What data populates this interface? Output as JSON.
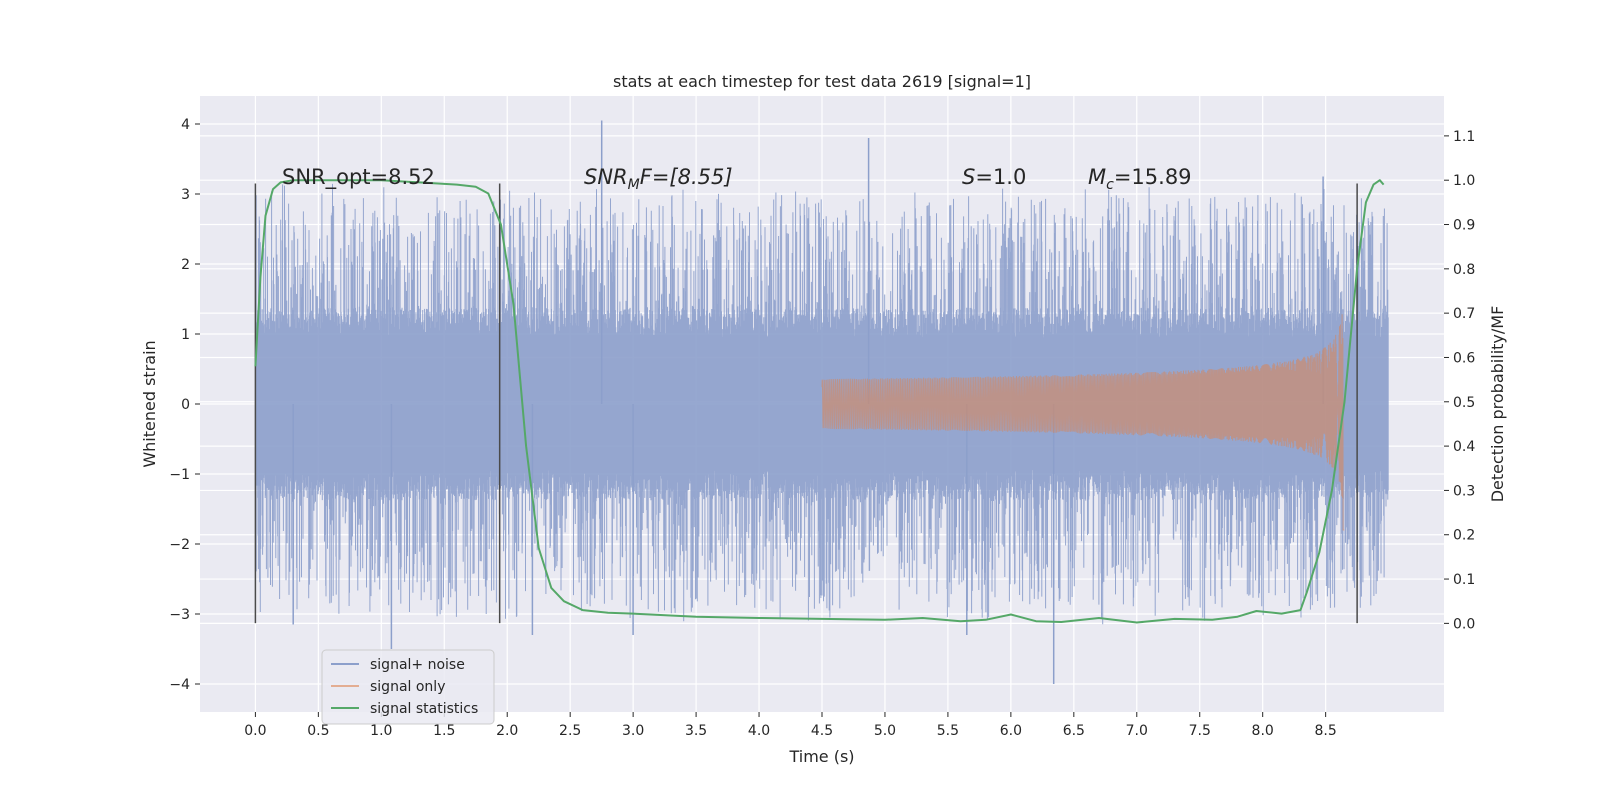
{
  "chart_data": {
    "type": "line",
    "title": "stats at each timestep for test data 2619 [signal=1]",
    "xlabel": "Time (s)",
    "ylabel": "Whitened strain",
    "y2label": "Detection probability/MF",
    "xlim": [
      -0.44,
      9.44
    ],
    "ylim": [
      -4.4,
      4.4
    ],
    "y2lim": [
      -0.2,
      1.19
    ],
    "x_ticks": [
      "0.0",
      "0.5",
      "1.0",
      "1.5",
      "2.0",
      "2.5",
      "3.0",
      "3.5",
      "4.0",
      "4.5",
      "5.0",
      "5.5",
      "6.0",
      "6.5",
      "7.0",
      "7.5",
      "8.0",
      "8.5"
    ],
    "y_ticks": [
      "4",
      "3",
      "2",
      "1",
      "0",
      "−1",
      "−2",
      "−3",
      "−4"
    ],
    "y2_ticks": [
      "1.1",
      "1.0",
      "0.9",
      "0.8",
      "0.7",
      "0.6",
      "0.5",
      "0.4",
      "0.3",
      "0.2",
      "0.1",
      "0.0"
    ],
    "grid": true,
    "vertical_markers_s": [
      0.0,
      1.94,
      8.75
    ],
    "noise": {
      "t_start": 0.0,
      "t_end": 9.0,
      "typical_abs": 1.25,
      "max": 4.05,
      "min": -4.0
    },
    "signal_only": {
      "t_start": 4.5,
      "t_merger": 8.65,
      "peak_amplitude": 1.35,
      "min_amplitude": -1.8
    },
    "series": [
      {
        "name": "signal+ noise",
        "color": "#8c9fcb"
      },
      {
        "name": "signal only",
        "color": "#dd8452"
      },
      {
        "name": "signal statistics",
        "color": "#55a868",
        "x": [
          0.0,
          0.04,
          0.08,
          0.14,
          0.2,
          0.3,
          0.5,
          0.8,
          1.0,
          1.3,
          1.6,
          1.75,
          1.85,
          1.95,
          2.05,
          2.15,
          2.25,
          2.35,
          2.45,
          2.6,
          2.8,
          3.0,
          3.5,
          4.0,
          4.5,
          5.0,
          5.3,
          5.6,
          5.8,
          6.0,
          6.2,
          6.4,
          6.7,
          7.0,
          7.3,
          7.6,
          7.8,
          7.95,
          8.15,
          8.3,
          8.35,
          8.45,
          8.55,
          8.65,
          8.75,
          8.82,
          8.88,
          8.93,
          8.96
        ],
        "values": [
          0.58,
          0.78,
          0.92,
          0.98,
          0.995,
          1.0,
          1.0,
          1.0,
          1.0,
          0.995,
          0.99,
          0.985,
          0.97,
          0.9,
          0.72,
          0.4,
          0.17,
          0.08,
          0.05,
          0.03,
          0.024,
          0.022,
          0.015,
          0.012,
          0.01,
          0.008,
          0.012,
          0.005,
          0.008,
          0.02,
          0.005,
          0.003,
          0.012,
          0.002,
          0.01,
          0.008,
          0.015,
          0.028,
          0.022,
          0.03,
          0.07,
          0.16,
          0.3,
          0.5,
          0.8,
          0.95,
          0.99,
          1.0,
          0.99
        ]
      }
    ],
    "annotations": {
      "snr_opt": "SNR_opt=8.52",
      "snr_mf_main": "SNR",
      "snr_mf_sub": "M",
      "snr_mf_tail": "F=[8.55]",
      "s_sym": "S",
      "s_val": "=1.0",
      "mc_sym": "M",
      "mc_sub": "c",
      "mc_val": "=15.89"
    },
    "legend_position": "lower-left"
  }
}
